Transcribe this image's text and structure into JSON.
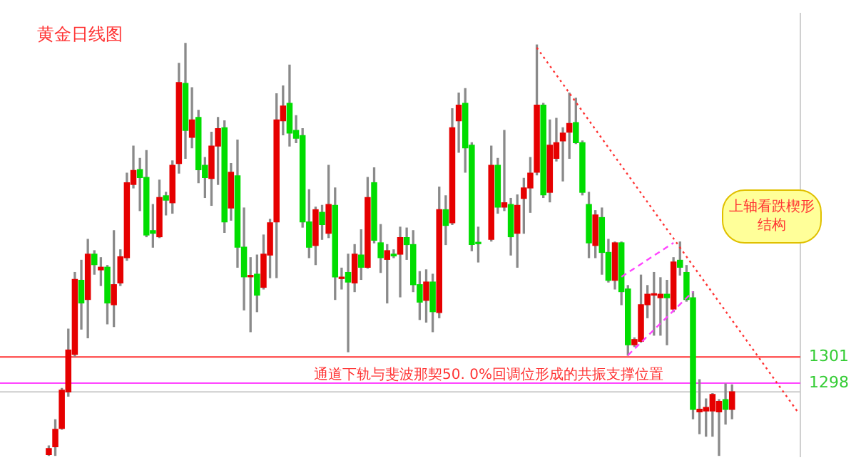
{
  "chart_data": {
    "type": "candlestick",
    "title": "黄金日线图",
    "annotations": [
      "通道下轨与斐波那契50. 0%回调位形成的共振支撑位置",
      "上轴看跌楔形结构"
    ],
    "categories": [
      null,
      null,
      null,
      null,
      null,
      null,
      null,
      null,
      null,
      null,
      null,
      null,
      null,
      null,
      null,
      null,
      null,
      null,
      null,
      null,
      null,
      null,
      null,
      null,
      null,
      null,
      null,
      null,
      null,
      null,
      null,
      null,
      null,
      null,
      null,
      null,
      null,
      null,
      null,
      null,
      null,
      null,
      null,
      null,
      null,
      null,
      null,
      null,
      null,
      null,
      null,
      null,
      null,
      null,
      null,
      null,
      null,
      null,
      null,
      null,
      null,
      null,
      null,
      null,
      null,
      null,
      null,
      null,
      null,
      null,
      null,
      null,
      null,
      null,
      null,
      null,
      null,
      null,
      null,
      null,
      null,
      null,
      null,
      null,
      null,
      null,
      null,
      null,
      null,
      null,
      null,
      null,
      null,
      null,
      null,
      null,
      null,
      null,
      null,
      null,
      null,
      null,
      null,
      null,
      null,
      null,
      null,
      null,
      null,
      null,
      null,
      null,
      null,
      null,
      null,
      null,
      null,
      null,
      null,
      null,
      null,
      null,
      null
    ],
    "ohlc": [
      null,
      null,
      null,
      null,
      null,
      null,
      null,
      [
        1289.8,
        1290.8,
        1289.7,
        1290.5
      ],
      [
        1290.7,
        1293.8,
        1289.7,
        1292.7
      ],
      [
        1292.8,
        1297.4,
        1292.7,
        1297.2
      ],
      [
        1297.0,
        1304.2,
        1296.5,
        1301.8
      ],
      [
        1301.3,
        1310.7,
        1301.1,
        1309.9
      ],
      [
        1309.8,
        1312.1,
        1304.2,
        1307.2
      ],
      [
        1307.6,
        1314.5,
        1303.2,
        1312.8
      ],
      [
        1312.8,
        1313.2,
        1310.5,
        1311.6
      ],
      [
        1311.0,
        1312.4,
        1309.2,
        1311.3
      ],
      [
        1311.3,
        1311.5,
        1304.8,
        1307.2
      ],
      [
        1307.0,
        1315.5,
        1304.5,
        1309.3
      ],
      [
        1309.5,
        1313.3,
        1309.2,
        1312.5
      ],
      [
        1312.4,
        1322.1,
        1312.1,
        1321.0
      ],
      [
        1320.8,
        1325.2,
        1320.4,
        1322.4
      ],
      [
        1322.5,
        1323.8,
        1317.8,
        1321.6
      ],
      [
        1321.6,
        1324.7,
        1314.8,
        1315.0
      ],
      [
        1315.5,
        1318.5,
        1313.6,
        1315.2
      ],
      [
        1314.8,
        1321.3,
        1314.7,
        1319.3
      ],
      [
        1319.5,
        1319.9,
        1317.3,
        1319.0
      ],
      [
        1318.7,
        1323.5,
        1317.5,
        1323.0
      ],
      [
        1323.2,
        1334.7,
        1322.1,
        1332.5
      ],
      [
        1332.4,
        1337.0,
        1323.8,
        1327.0
      ],
      [
        1326.2,
        1331.9,
        1325.0,
        1328.2
      ],
      [
        1328.5,
        1329.3,
        1321.0,
        1322.5
      ],
      [
        1323.0,
        1323.9,
        1319.3,
        1321.6
      ],
      [
        1321.5,
        1326.8,
        1318.4,
        1325.2
      ],
      [
        1325.2,
        1328.5,
        1320.8,
        1327.2
      ],
      [
        1327.3,
        1328.1,
        1315.3,
        1316.5
      ],
      [
        1318.1,
        1323.2,
        1316.7,
        1322.2
      ],
      [
        1321.8,
        1325.9,
        1311.3,
        1313.6
      ],
      [
        1313.6,
        1318.1,
        1306.4,
        1310.2
      ],
      [
        1310.2,
        1312.4,
        1303.9,
        1310.3
      ],
      [
        1310.5,
        1312.7,
        1306.2,
        1308.1
      ],
      [
        1309.0,
        1315.0,
        1308.8,
        1312.8
      ],
      [
        1312.7,
        1316.8,
        1310.1,
        1316.4
      ],
      [
        1316.5,
        1331.2,
        1310.1,
        1328.2
      ],
      [
        1328.1,
        1332.1,
        1326.5,
        1329.8
      ],
      [
        1330.1,
        1334.5,
        1325.2,
        1326.7
      ],
      [
        1327.0,
        1328.7,
        1325.6,
        1326.1
      ],
      [
        1326.4,
        1327.2,
        1315.9,
        1316.5
      ],
      [
        1316.5,
        1320.2,
        1312.4,
        1313.6
      ],
      [
        1313.8,
        1318.2,
        1311.6,
        1317.9
      ],
      [
        1317.6,
        1318.4,
        1314.5,
        1316.2
      ],
      [
        1315.2,
        1323.0,
        1314.7,
        1318.5
      ],
      [
        1318.4,
        1320.4,
        1307.6,
        1310.2
      ],
      [
        1310.0,
        1311.2,
        1308.8,
        1310.1
      ],
      [
        1310.7,
        1312.8,
        1301.6,
        1309.6
      ],
      [
        1309.5,
        1313.9,
        1308.5,
        1312.8
      ],
      [
        1312.7,
        1315.6,
        1309.9,
        1311.3
      ],
      [
        1311.3,
        1321.6,
        1311.2,
        1319.3
      ],
      [
        1321.0,
        1322.7,
        1314.1,
        1314.4
      ],
      [
        1314.1,
        1316.2,
        1310.7,
        1312.4
      ],
      [
        1312.2,
        1313.9,
        1307.2,
        1313.2
      ],
      [
        1312.8,
        1313.3,
        1312.4,
        1312.6
      ],
      [
        1312.8,
        1315.9,
        1307.9,
        1314.7
      ],
      [
        1314.7,
        1315.8,
        1312.2,
        1313.9
      ],
      [
        1313.9,
        1315.5,
        1308.5,
        1309.3
      ],
      [
        1309.3,
        1310.8,
        1305.3,
        1307.3
      ],
      [
        1307.5,
        1311.0,
        1305.0,
        1309.6
      ],
      [
        1309.6,
        1310.5,
        1303.9,
        1306.2
      ],
      [
        1306.1,
        1320.5,
        1305.5,
        1317.9
      ],
      [
        1317.9,
        1319.5,
        1313.9,
        1316.1
      ],
      [
        1316.4,
        1329.5,
        1316.2,
        1327.3
      ],
      [
        1328.1,
        1331.3,
        1324.5,
        1329.9
      ],
      [
        1330.1,
        1331.8,
        1322.2,
        1325.0
      ],
      [
        1325.3,
        1325.6,
        1313.2,
        1313.9
      ],
      [
        1314.1,
        1315.9,
        1311.9,
        1314.0
      ],
      null,
      [
        1314.5,
        1325.2,
        1314.3,
        1323.0
      ],
      [
        1323.0,
        1323.8,
        1317.5,
        1318.2
      ],
      [
        1318.2,
        1327.0,
        1317.8,
        1318.7
      ],
      [
        1318.5,
        1319.2,
        1312.7,
        1314.8
      ],
      [
        1315.2,
        1319.6,
        1311.3,
        1318.4
      ],
      [
        1319.2,
        1321.5,
        1315.2,
        1320.4
      ],
      [
        1320.4,
        1323.9,
        1317.6,
        1322.1
      ],
      [
        1322.2,
        1336.8,
        1321.9,
        1329.9
      ],
      [
        1329.9,
        1330.1,
        1319.3,
        1319.6
      ],
      [
        1319.9,
        1328.2,
        1318.8,
        1325.3
      ],
      [
        1323.8,
        1328.4,
        1323.5,
        1325.6
      ],
      [
        1325.8,
        1327.3,
        1321.2,
        1326.7
      ],
      [
        1326.8,
        1331.3,
        1323.8,
        1327.8
      ],
      [
        1327.9,
        1330.7,
        1325.5,
        1325.6
      ],
      [
        1325.6,
        1325.8,
        1319.6,
        1319.9
      ],
      [
        1318.5,
        1319.9,
        1312.4,
        1314.1
      ],
      [
        1313.8,
        1317.8,
        1312.4,
        1317.3
      ],
      [
        1317.0,
        1318.1,
        1310.5,
        1313.0
      ],
      [
        1313.0,
        1314.5,
        1309.6,
        1309.8
      ],
      [
        1309.8,
        1314.2,
        1308.8,
        1314.1
      ],
      [
        1314.1,
        1314.2,
        1307.0,
        1308.5
      ],
      [
        1308.8,
        1309.2,
        1301.2,
        1302.4
      ],
      [
        1302.4,
        1303.2,
        1302.2,
        1303.0
      ],
      [
        1302.8,
        1310.4,
        1302.7,
        1307.0
      ],
      [
        1307.0,
        1309.2,
        1305.5,
        1308.2
      ],
      [
        1308.1,
        1310.7,
        1303.5,
        1308.2
      ],
      [
        1307.8,
        1310.1,
        1303.5,
        1308.2
      ],
      [
        1308.2,
        1309.8,
        1302.4,
        1307.8
      ],
      [
        1306.5,
        1312.4,
        1306.2,
        1311.9
      ],
      [
        1312.1,
        1314.2,
        1310.4,
        1311.3
      ],
      [
        1310.7,
        1311.5,
        1307.4,
        1307.6
      ],
      [
        1307.8,
        1308.5,
        1293.9,
        1295.0
      ],
      [
        1294.7,
        1298.4,
        1292.2,
        1295.0
      ],
      [
        1294.8,
        1296.2,
        1291.9,
        1295.2
      ],
      [
        1294.8,
        1296.8,
        1291.9,
        1296.7
      ],
      [
        1294.7,
        1296.1,
        1289.7,
        1295.9
      ],
      [
        1296.1,
        1297.9,
        1293.3,
        1295.0
      ],
      [
        1295.0,
        1297.8,
        1293.9,
        1297.0
      ],
      null,
      null,
      null,
      null,
      null,
      null,
      null,
      null,
      null,
      null
    ],
    "colors": [
      null,
      null,
      null,
      null,
      null,
      null,
      null,
      "#e60000",
      "#e60000",
      "#e60000",
      "#e60000",
      "#e60000",
      "#00dd00",
      "#e60000",
      "#00dd00",
      "#e60000",
      "#00dd00",
      "#e60000",
      "#e60000",
      "#e60000",
      "#e60000",
      "#00dd00",
      "#00dd00",
      "#00dd00",
      "#e60000",
      "#00dd00",
      "#e60000",
      "#e60000",
      "#00dd00",
      "#e60000",
      "#00dd00",
      "#00dd00",
      "#e60000",
      "#e60000",
      "#00dd00",
      "#e60000",
      "#00dd00",
      "#00dd00",
      "#e60000",
      "#00dd00",
      "#e60000",
      "#e60000",
      "#e60000",
      "#e60000",
      "#00dd00",
      "#00dd00",
      "#00dd00",
      "#00dd00",
      "#e60000",
      "#00dd00",
      "#e60000",
      "#00dd00",
      "#e60000",
      "#00dd00",
      "#e60000",
      "#00dd00",
      "#e60000",
      "#00dd00",
      "#00dd00",
      "#e60000",
      "#00dd00",
      "#e60000",
      "#00dd00",
      "#00dd00",
      "#00dd00",
      "#e60000",
      "#00dd00",
      "#e60000",
      "#00dd00",
      "#e60000",
      "#e60000",
      "#00dd00",
      "#00dd00",
      "#00dd00",
      null,
      "#e60000",
      "#00dd00",
      "#e60000",
      "#00dd00",
      "#e60000",
      "#e60000",
      "#e60000",
      "#e60000",
      "#00dd00",
      "#e60000",
      "#e60000",
      "#e60000",
      "#e60000",
      "#00dd00",
      "#00dd00",
      "#00dd00",
      "#e60000",
      "#00dd00",
      "#00dd00",
      "#e60000",
      "#00dd00",
      "#00dd00",
      "#e60000",
      "#e60000",
      "#e60000",
      "#e60000",
      "#e60000",
      "#00dd00",
      "#e60000",
      "#00dd00",
      "#00dd00",
      "#00dd00",
      "#e60000",
      "#e60000",
      "#e60000",
      "#e60000",
      "#00dd00",
      "#e60000",
      null,
      null,
      null,
      null,
      null,
      null,
      null,
      null,
      null,
      null
    ],
    "series": [
      {
        "type": "line",
        "values": [
          null,
          null,
          null,
          null,
          null,
          null,
          null,
          null,
          null,
          null,
          null,
          null,
          null,
          null,
          null,
          null,
          null,
          null,
          null,
          null,
          null,
          null,
          null,
          null,
          null,
          null,
          null,
          null,
          null,
          null,
          null,
          null,
          null,
          null,
          null,
          null,
          null,
          null,
          null,
          null,
          null,
          null,
          null,
          null,
          null,
          null,
          null,
          null,
          null,
          null,
          null,
          null,
          null,
          null,
          null,
          null,
          null,
          null,
          null,
          null,
          null,
          null,
          null,
          null,
          null,
          null,
          null,
          null,
          null,
          null,
          null,
          null,
          null,
          null,
          null,
          null,
          null,
          null,
          null,
          null,
          null,
          null,
          1336.5,
          null,
          null,
          null,
          null,
          null,
          null,
          null,
          null,
          null,
          null,
          null,
          null,
          null,
          null,
          null,
          null,
          null,
          null,
          null,
          null,
          null,
          null,
          null,
          null,
          null,
          null,
          null,
          null,
          null,
          null,
          null,
          null,
          null,
          null,
          null,
          null,
          null,
          null,
          null,
          1294.8
        ],
        "color": "#ff3333",
        "line_style": "dotted"
      },
      {
        "type": "line",
        "values": [
          null,
          null,
          null,
          null,
          null,
          null,
          null,
          null,
          null,
          null,
          null,
          null,
          null,
          null,
          null,
          null,
          null,
          null,
          null,
          null,
          null,
          null,
          null,
          null,
          null,
          null,
          null,
          null,
          null,
          null,
          null,
          null,
          null,
          null,
          null,
          null,
          null,
          null,
          null,
          null,
          null,
          null,
          null,
          null,
          null,
          null,
          null,
          null,
          null,
          null,
          null,
          null,
          null,
          null,
          null,
          null,
          null,
          null,
          null,
          null,
          null,
          null,
          null,
          null,
          null,
          null,
          null,
          null,
          null,
          null,
          null,
          null,
          null,
          null,
          null,
          null,
          null,
          null,
          null,
          null,
          null,
          null,
          null,
          null,
          null,
          null,
          null,
          null,
          null,
          null,
          null,
          null,
          null,
          null,
          null,
          1310.2,
          null,
          null,
          null,
          null,
          null,
          null,
          null,
          1314.1,
          null,
          null,
          null,
          null,
          null,
          null,
          null,
          null,
          null,
          null,
          null,
          null,
          null,
          null,
          null,
          null,
          null,
          null,
          null
        ],
        "color": "#ff44ff",
        "line_style": "dashed"
      },
      {
        "type": "line",
        "values": [
          null,
          null,
          null,
          null,
          null,
          null,
          null,
          null,
          null,
          null,
          null,
          null,
          null,
          null,
          null,
          null,
          null,
          null,
          null,
          null,
          null,
          null,
          null,
          null,
          null,
          null,
          null,
          null,
          null,
          null,
          null,
          null,
          null,
          null,
          null,
          null,
          null,
          null,
          null,
          null,
          null,
          null,
          null,
          null,
          null,
          null,
          null,
          null,
          null,
          null,
          null,
          null,
          null,
          null,
          null,
          null,
          null,
          null,
          null,
          null,
          null,
          null,
          null,
          null,
          null,
          null,
          null,
          null,
          null,
          null,
          null,
          null,
          null,
          null,
          null,
          null,
          null,
          null,
          null,
          null,
          null,
          null,
          null,
          null,
          null,
          null,
          null,
          null,
          null,
          null,
          null,
          null,
          null,
          null,
          null,
          null,
          1301.2,
          null,
          null,
          null,
          null,
          null,
          null,
          null,
          null,
          null,
          1308.5,
          null,
          null,
          null,
          null,
          null,
          null,
          null,
          null,
          null,
          null,
          null,
          null,
          null,
          null,
          null,
          null
        ],
        "color": "#ff44ff",
        "line_style": "dashed"
      }
    ],
    "ylim": [
      1289.6,
      1340.4
    ],
    "yticks": [
      1298,
      1301
    ],
    "tick_labels": "y",
    "ref_lines": [
      {
        "axis": "y",
        "value": 1301,
        "color": "#ff3333"
      },
      {
        "axis": "y",
        "value": 1298,
        "color": "#ff44ff"
      },
      {
        "axis": "y",
        "value": 1297,
        "color": "#cccccc"
      }
    ]
  }
}
